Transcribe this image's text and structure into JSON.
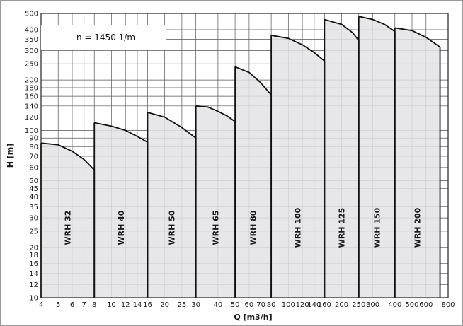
{
  "speed_note": "n = 1450 1/m",
  "chart_data": {
    "type": "area",
    "title": "",
    "xlabel": "Q [m3/h]",
    "ylabel": "H [m]",
    "x_scale": "log",
    "y_scale": "log",
    "xlim": [
      4,
      800
    ],
    "ylim": [
      10,
      500
    ],
    "grid": true,
    "annotation": "n = 1450 1/m",
    "x_ticks": [
      4,
      5,
      6,
      7,
      8,
      10,
      12,
      14,
      16,
      20,
      25,
      30,
      40,
      50,
      60,
      70,
      80,
      100,
      120,
      140,
      160,
      200,
      250,
      300,
      400,
      500,
      600,
      800
    ],
    "x_tick_labels": [
      "4",
      "5",
      "6",
      "7",
      "8",
      "10",
      "12",
      "14",
      "16",
      "20",
      "25",
      "30",
      "40",
      "50",
      "60",
      "70",
      "80",
      "100",
      "120",
      "140",
      "160",
      "200",
      "250",
      "300",
      "400",
      "500",
      "600",
      "800"
    ],
    "y_ticks": [
      10,
      12,
      14,
      16,
      18,
      20,
      25,
      30,
      35,
      40,
      45,
      50,
      60,
      70,
      80,
      90,
      100,
      120,
      140,
      160,
      180,
      200,
      250,
      300,
      350,
      400,
      500
    ],
    "y_tick_labels": [
      "10",
      "12",
      "14",
      "16",
      "18",
      "20",
      "25",
      "30",
      "35",
      "40",
      "45",
      "50",
      "60",
      "70",
      "80",
      "90",
      "100",
      "120",
      "140",
      "160",
      "180",
      "200",
      "250",
      "300",
      "350",
      "400",
      "500"
    ],
    "fill_color": "#e3e3e5",
    "line_color": "#111111",
    "series": [
      {
        "name": "WRH 32",
        "q_min": 4,
        "q_max": 8,
        "curve": [
          [
            4,
            84
          ],
          [
            5,
            82
          ],
          [
            6,
            75
          ],
          [
            7,
            67
          ],
          [
            8,
            58
          ]
        ]
      },
      {
        "name": "WRH 40",
        "q_min": 8,
        "q_max": 16,
        "curve": [
          [
            8,
            111
          ],
          [
            10,
            106
          ],
          [
            12,
            100
          ],
          [
            14,
            92
          ],
          [
            16,
            85
          ]
        ]
      },
      {
        "name": "WRH 50",
        "q_min": 16,
        "q_max": 30,
        "curve": [
          [
            16,
            128
          ],
          [
            20,
            120
          ],
          [
            25,
            104
          ],
          [
            30,
            90
          ]
        ]
      },
      {
        "name": "WRH 65",
        "q_min": 30,
        "q_max": 50,
        "curve": [
          [
            30,
            140
          ],
          [
            35,
            138
          ],
          [
            40,
            130
          ],
          [
            45,
            122
          ],
          [
            50,
            113
          ]
        ]
      },
      {
        "name": "WRH 80",
        "q_min": 50,
        "q_max": 80,
        "curve": [
          [
            50,
            240
          ],
          [
            60,
            222
          ],
          [
            70,
            192
          ],
          [
            80,
            163
          ]
        ]
      },
      {
        "name": "WRH 100",
        "q_min": 80,
        "q_max": 160,
        "curve": [
          [
            80,
            370
          ],
          [
            100,
            355
          ],
          [
            120,
            325
          ],
          [
            140,
            292
          ],
          [
            160,
            260
          ]
        ]
      },
      {
        "name": "WRH 125",
        "q_min": 160,
        "q_max": 250,
        "curve": [
          [
            160,
            460
          ],
          [
            200,
            430
          ],
          [
            230,
            385
          ],
          [
            250,
            345
          ]
        ]
      },
      {
        "name": "WRH 150",
        "q_min": 250,
        "q_max": 400,
        "curve": [
          [
            250,
            480
          ],
          [
            300,
            460
          ],
          [
            350,
            430
          ],
          [
            400,
            390
          ]
        ]
      },
      {
        "name": "WRH 200",
        "q_min": 400,
        "q_max": 720,
        "curve": [
          [
            400,
            410
          ],
          [
            500,
            395
          ],
          [
            600,
            360
          ],
          [
            720,
            315
          ]
        ]
      }
    ]
  }
}
